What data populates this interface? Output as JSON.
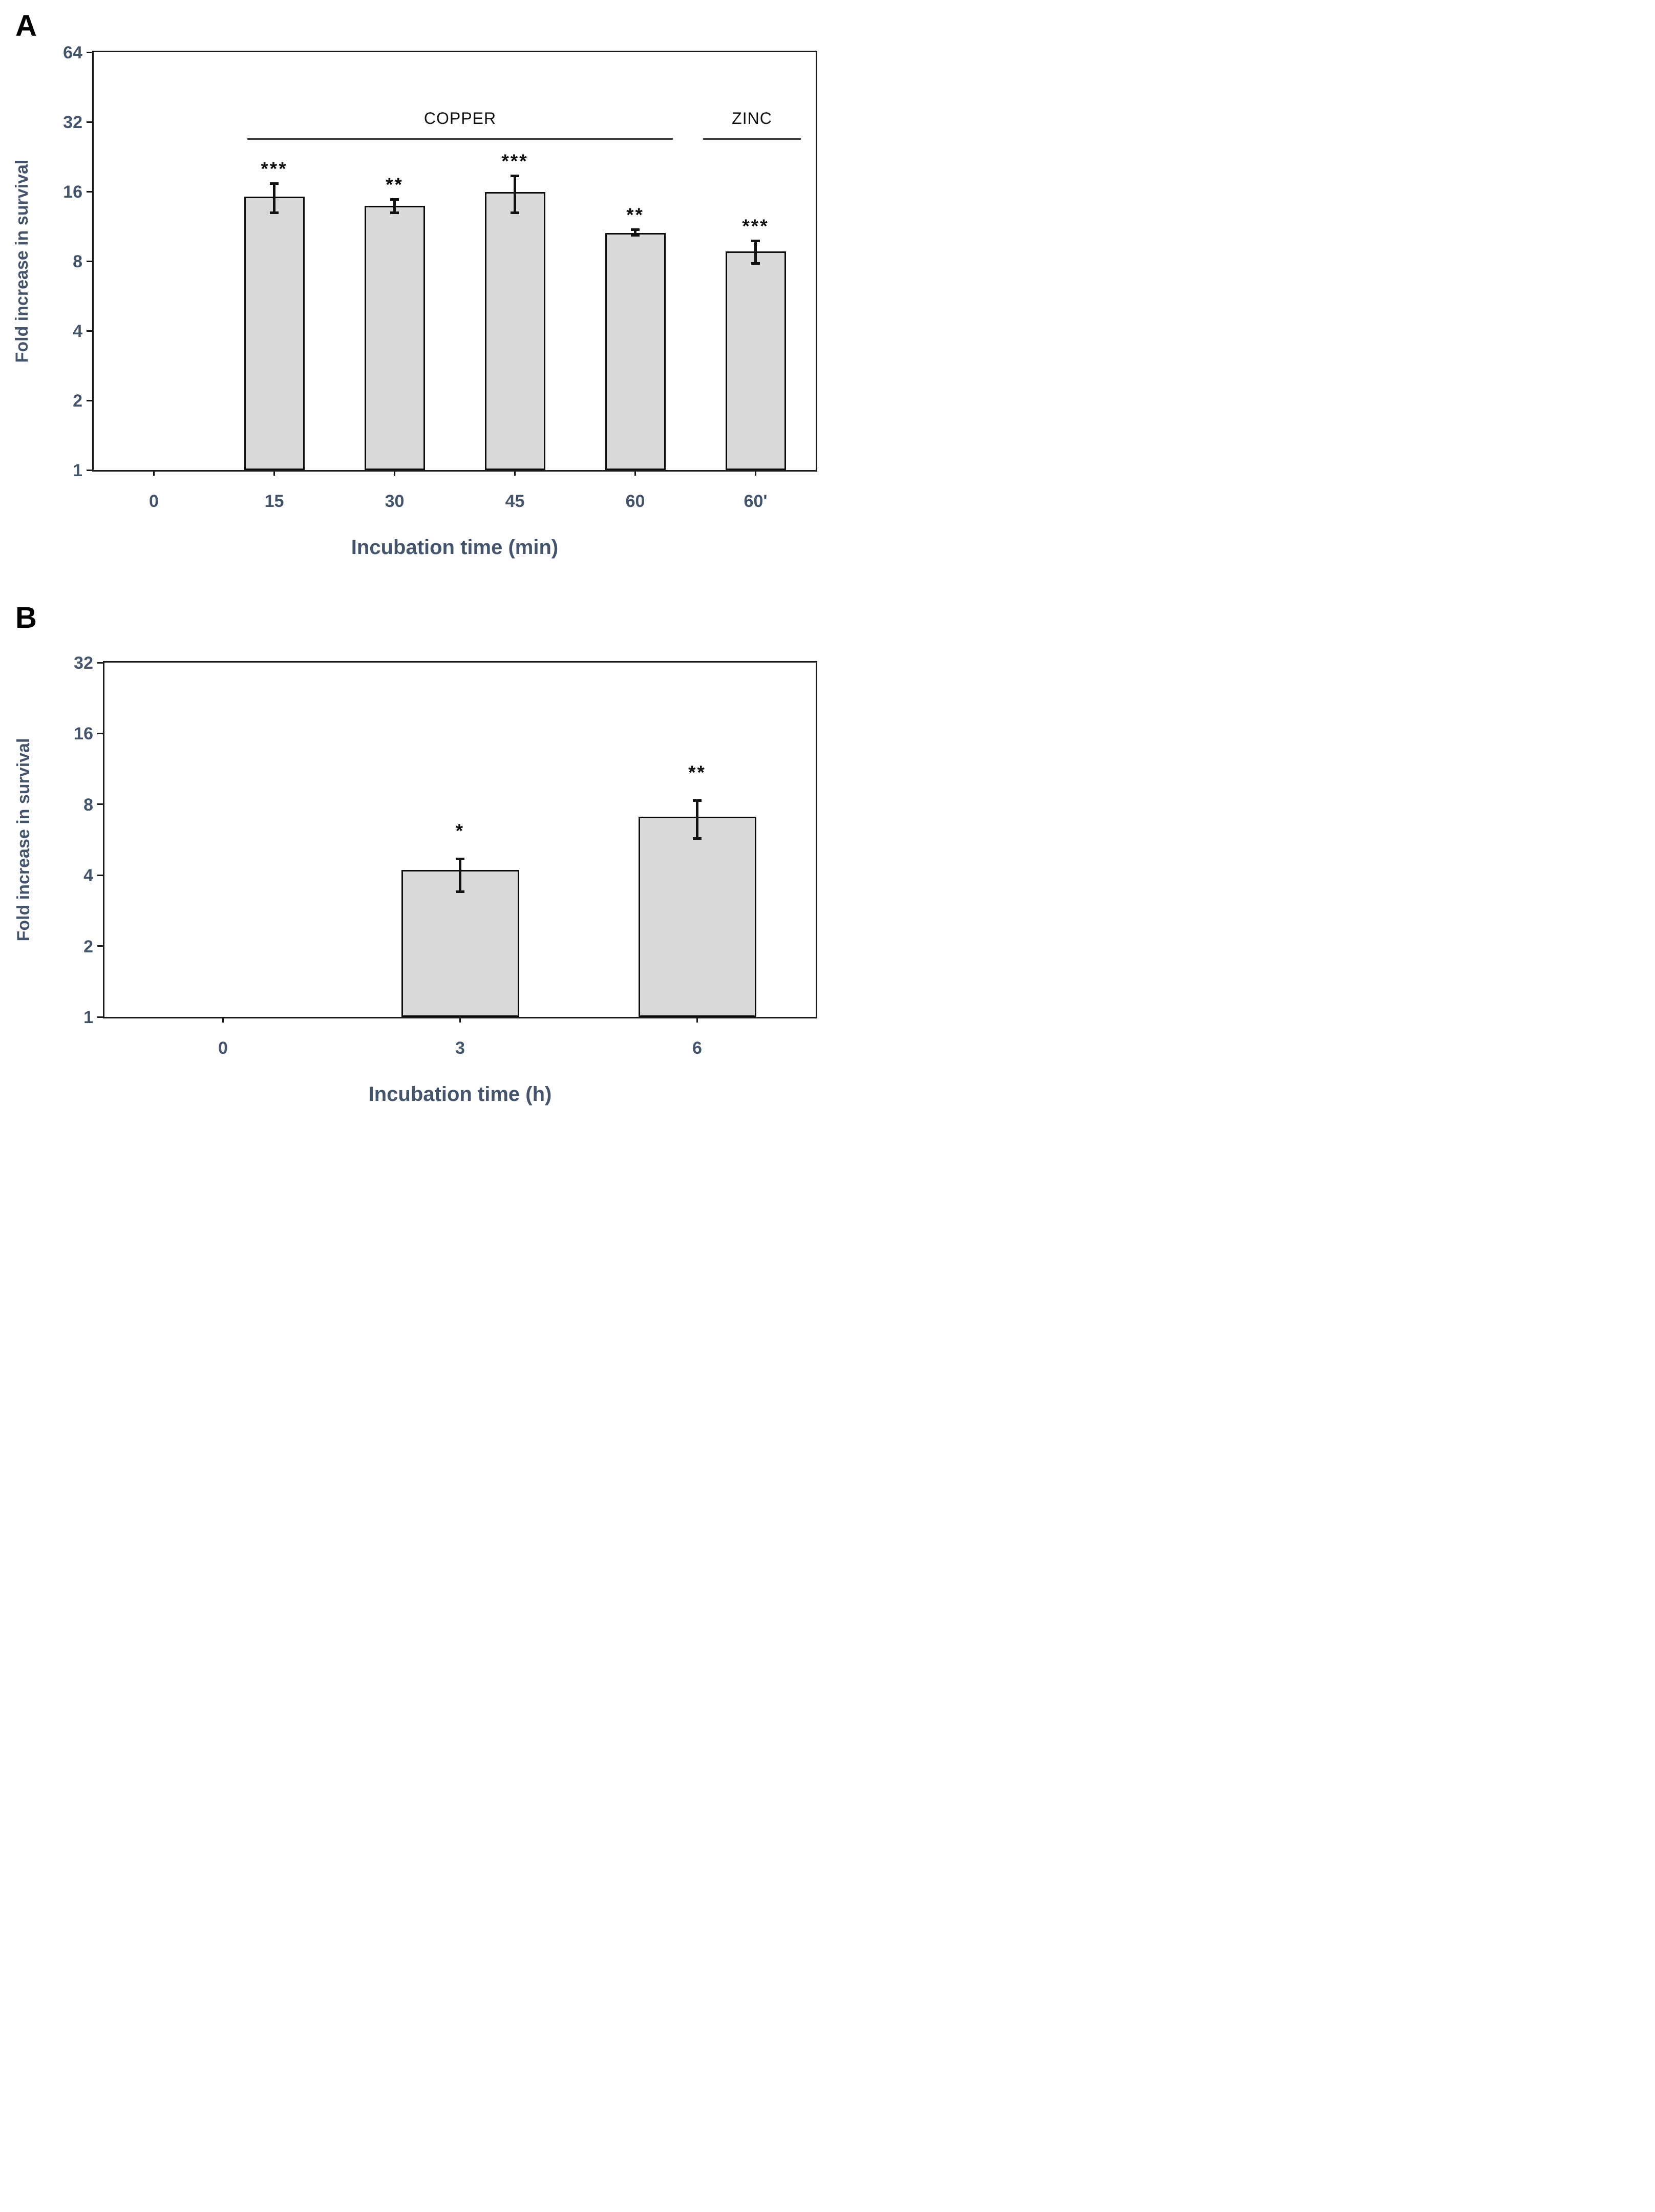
{
  "figure": {
    "background": "#FFFFFF",
    "colors": {
      "label_text": "#44546A",
      "axis": "#1A1A1A",
      "bar_fill": "#D9D9D9",
      "bar_border": "#0D0D0D",
      "annotation_text": "#111111"
    }
  },
  "chart_data": [
    {
      "panel": "A",
      "type": "bar",
      "ylabel": "Fold increase in survival",
      "xlabel": "Incubation time (min)",
      "yscale": "log2",
      "ylim": [
        1,
        64
      ],
      "yticks": [
        64,
        32,
        16,
        8,
        4,
        2,
        1
      ],
      "categories": [
        "0",
        "15",
        "30",
        "45",
        "60",
        "60'"
      ],
      "values": [
        null,
        15.2,
        13.9,
        15.9,
        10.6,
        8.8
      ],
      "error_low": [
        null,
        12.9,
        12.9,
        12.9,
        10.3,
        7.8
      ],
      "error_high": [
        null,
        17.4,
        14.8,
        18.7,
        11.0,
        9.8
      ],
      "significance": [
        "",
        "***",
        "**",
        "***",
        "**",
        "***"
      ],
      "groups": [
        {
          "label": "COPPER",
          "from_category": "15",
          "to_category": "60"
        },
        {
          "label": "ZINC",
          "from_category": "60'",
          "to_category": "60'"
        }
      ],
      "grid": false,
      "legend": "none"
    },
    {
      "panel": "B",
      "type": "bar",
      "ylabel": "Fold increase in survival",
      "xlabel": "Incubation time (h)",
      "yscale": "log2",
      "ylim": [
        1,
        32
      ],
      "yticks": [
        32,
        16,
        8,
        4,
        2,
        1
      ],
      "categories": [
        "0",
        "3",
        "6"
      ],
      "values": [
        null,
        4.2,
        7.1
      ],
      "error_low": [
        null,
        3.4,
        5.7
      ],
      "error_high": [
        null,
        4.7,
        8.3
      ],
      "significance": [
        "",
        "*",
        "**"
      ],
      "groups": [],
      "grid": false,
      "legend": "none"
    }
  ]
}
